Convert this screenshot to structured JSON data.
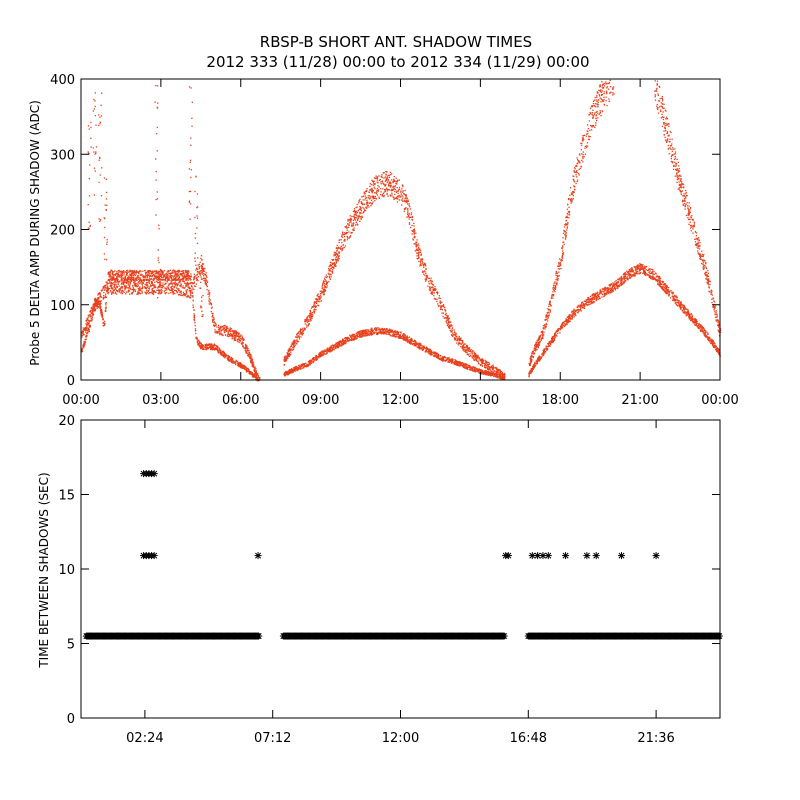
{
  "chart_data": [
    {
      "type": "scatter",
      "title": [
        "RBSP-B SHORT ANT. SHADOW TIMES",
        "2012 333 (11/28) 00:00 to 2012 334 (11/29) 00:00"
      ],
      "xlabel": "",
      "ylabel": "Probe 5 DELTA AMP DURING SHADOW (ADC)",
      "xlim": [
        0,
        24
      ],
      "ylim": [
        0,
        400
      ],
      "grid": false,
      "x_tick_values": [
        0,
        3,
        6,
        9,
        12,
        15,
        18,
        21,
        24
      ],
      "x_tick_labels": [
        "00:00",
        "03:00",
        "06:00",
        "09:00",
        "12:00",
        "15:00",
        "18:00",
        "21:00",
        "00:00"
      ],
      "y_tick_values": [
        0,
        100,
        200,
        300,
        400
      ],
      "y_tick_labels": [
        "0",
        "100",
        "200",
        "300",
        "400"
      ],
      "marker_color": "#e8401c",
      "series": [
        {
          "band": "lower",
          "x": [
            0.0,
            0.3,
            0.5,
            0.7,
            0.85,
            1.0,
            1.5,
            2.0,
            2.5,
            2.8,
            3.5,
            4.1,
            4.3,
            4.5,
            5.0,
            5.5,
            6.0,
            6.3,
            6.5,
            6.7
          ],
          "y": [
            40,
            70,
            105,
            100,
            70,
            140,
            140,
            140,
            140,
            140,
            140,
            140,
            55,
            45,
            45,
            30,
            20,
            12,
            5,
            0
          ]
        },
        {
          "band": "upper",
          "x": [
            0.0,
            0.5,
            1.0,
            1.5,
            2.0,
            2.5,
            2.8,
            3.5,
            4.1,
            4.5,
            4.7,
            5.0,
            5.5,
            6.0,
            6.3,
            6.5,
            6.7
          ],
          "y": [
            60,
            100,
            125,
            125,
            125,
            125,
            125,
            125,
            120,
            155,
            130,
            70,
            65,
            55,
            35,
            15,
            0
          ]
        },
        {
          "band": "lower",
          "x": [
            7.6,
            8.0,
            8.5,
            9.0,
            9.5,
            10.0,
            10.5,
            11.0,
            11.5,
            12.0,
            12.5,
            13.0,
            13.5,
            14.0,
            14.5,
            15.0,
            15.5,
            15.9
          ],
          "y": [
            8,
            15,
            22,
            35,
            45,
            55,
            62,
            66,
            65,
            60,
            50,
            40,
            30,
            25,
            18,
            12,
            8,
            3
          ]
        },
        {
          "band": "upper",
          "x": [
            7.6,
            8.0,
            8.5,
            9.0,
            9.5,
            10.0,
            10.5,
            11.0,
            11.5,
            12.0,
            12.3,
            12.6,
            13.0,
            13.5,
            14.0,
            14.5,
            15.0,
            15.5,
            15.9
          ],
          "y": [
            25,
            50,
            80,
            115,
            160,
            200,
            230,
            255,
            262,
            250,
            225,
            175,
            135,
            100,
            60,
            40,
            25,
            15,
            5
          ]
        },
        {
          "band": "lower",
          "x": [
            16.8,
            17.0,
            17.5,
            18.0,
            18.5,
            19.0,
            19.5,
            20.0,
            20.5,
            21.0,
            21.5,
            22.0,
            22.5,
            23.0,
            23.5,
            24.0
          ],
          "y": [
            8,
            20,
            45,
            70,
            90,
            105,
            115,
            125,
            140,
            150,
            140,
            120,
            100,
            80,
            60,
            35
          ]
        },
        {
          "band": "upper",
          "x": [
            16.8,
            17.0,
            17.3,
            17.6,
            18.0,
            18.3,
            18.6,
            19.0,
            19.3,
            19.6,
            20.0
          ],
          "y": [
            20,
            40,
            60,
            100,
            160,
            230,
            280,
            330,
            360,
            380,
            400
          ]
        },
        {
          "band": "upper",
          "x": [
            21.5,
            22.0,
            22.5,
            23.0,
            23.5,
            24.0
          ],
          "y": [
            400,
            330,
            260,
            200,
            140,
            60
          ]
        },
        {
          "band": "spike",
          "x": [
            0.3,
            0.5,
            0.7,
            0.9,
            2.8,
            2.9,
            4.1,
            4.3,
            4.5
          ],
          "y": [
            330,
            400,
            380,
            260,
            390,
            200,
            390,
            260,
            150
          ]
        }
      ]
    },
    {
      "type": "scatter",
      "title": "",
      "xlabel": "",
      "ylabel": "TIME BETWEEN SHADOWS (SEC)",
      "xlim": [
        0,
        24
      ],
      "ylim": [
        0,
        20
      ],
      "grid": false,
      "x_tick_values": [
        2.4,
        7.2,
        12.0,
        16.8,
        21.6
      ],
      "x_tick_labels": [
        "02:24",
        "07:12",
        "12:00",
        "16:48",
        "21:36"
      ],
      "y_tick_values": [
        0,
        5,
        10,
        15,
        20
      ],
      "y_tick_labels": [
        "0",
        "5",
        "10",
        "15",
        "20"
      ],
      "marker_color": "#000000",
      "marker": "asterisk",
      "baseline_y": 5.5,
      "baseline_segments": [
        [
          0.2,
          6.7
        ],
        [
          7.6,
          15.9
        ],
        [
          16.8,
          24.0
        ]
      ],
      "series": [
        {
          "x": [
            2.35,
            2.45,
            2.55,
            2.65,
            2.75
          ],
          "y": [
            16.4,
            16.4,
            16.4,
            16.4,
            16.4
          ]
        },
        {
          "x": [
            2.35,
            2.45,
            2.55,
            2.65,
            2.75,
            6.65,
            15.95,
            16.05,
            16.95,
            17.15,
            17.35,
            17.55,
            18.2,
            19.0,
            19.35,
            20.3,
            21.6
          ],
          "y": [
            10.9,
            10.9,
            10.9,
            10.9,
            10.9,
            10.9,
            10.9,
            10.9,
            10.9,
            10.9,
            10.9,
            10.9,
            10.9,
            10.9,
            10.9,
            10.9,
            10.9
          ]
        }
      ]
    }
  ]
}
